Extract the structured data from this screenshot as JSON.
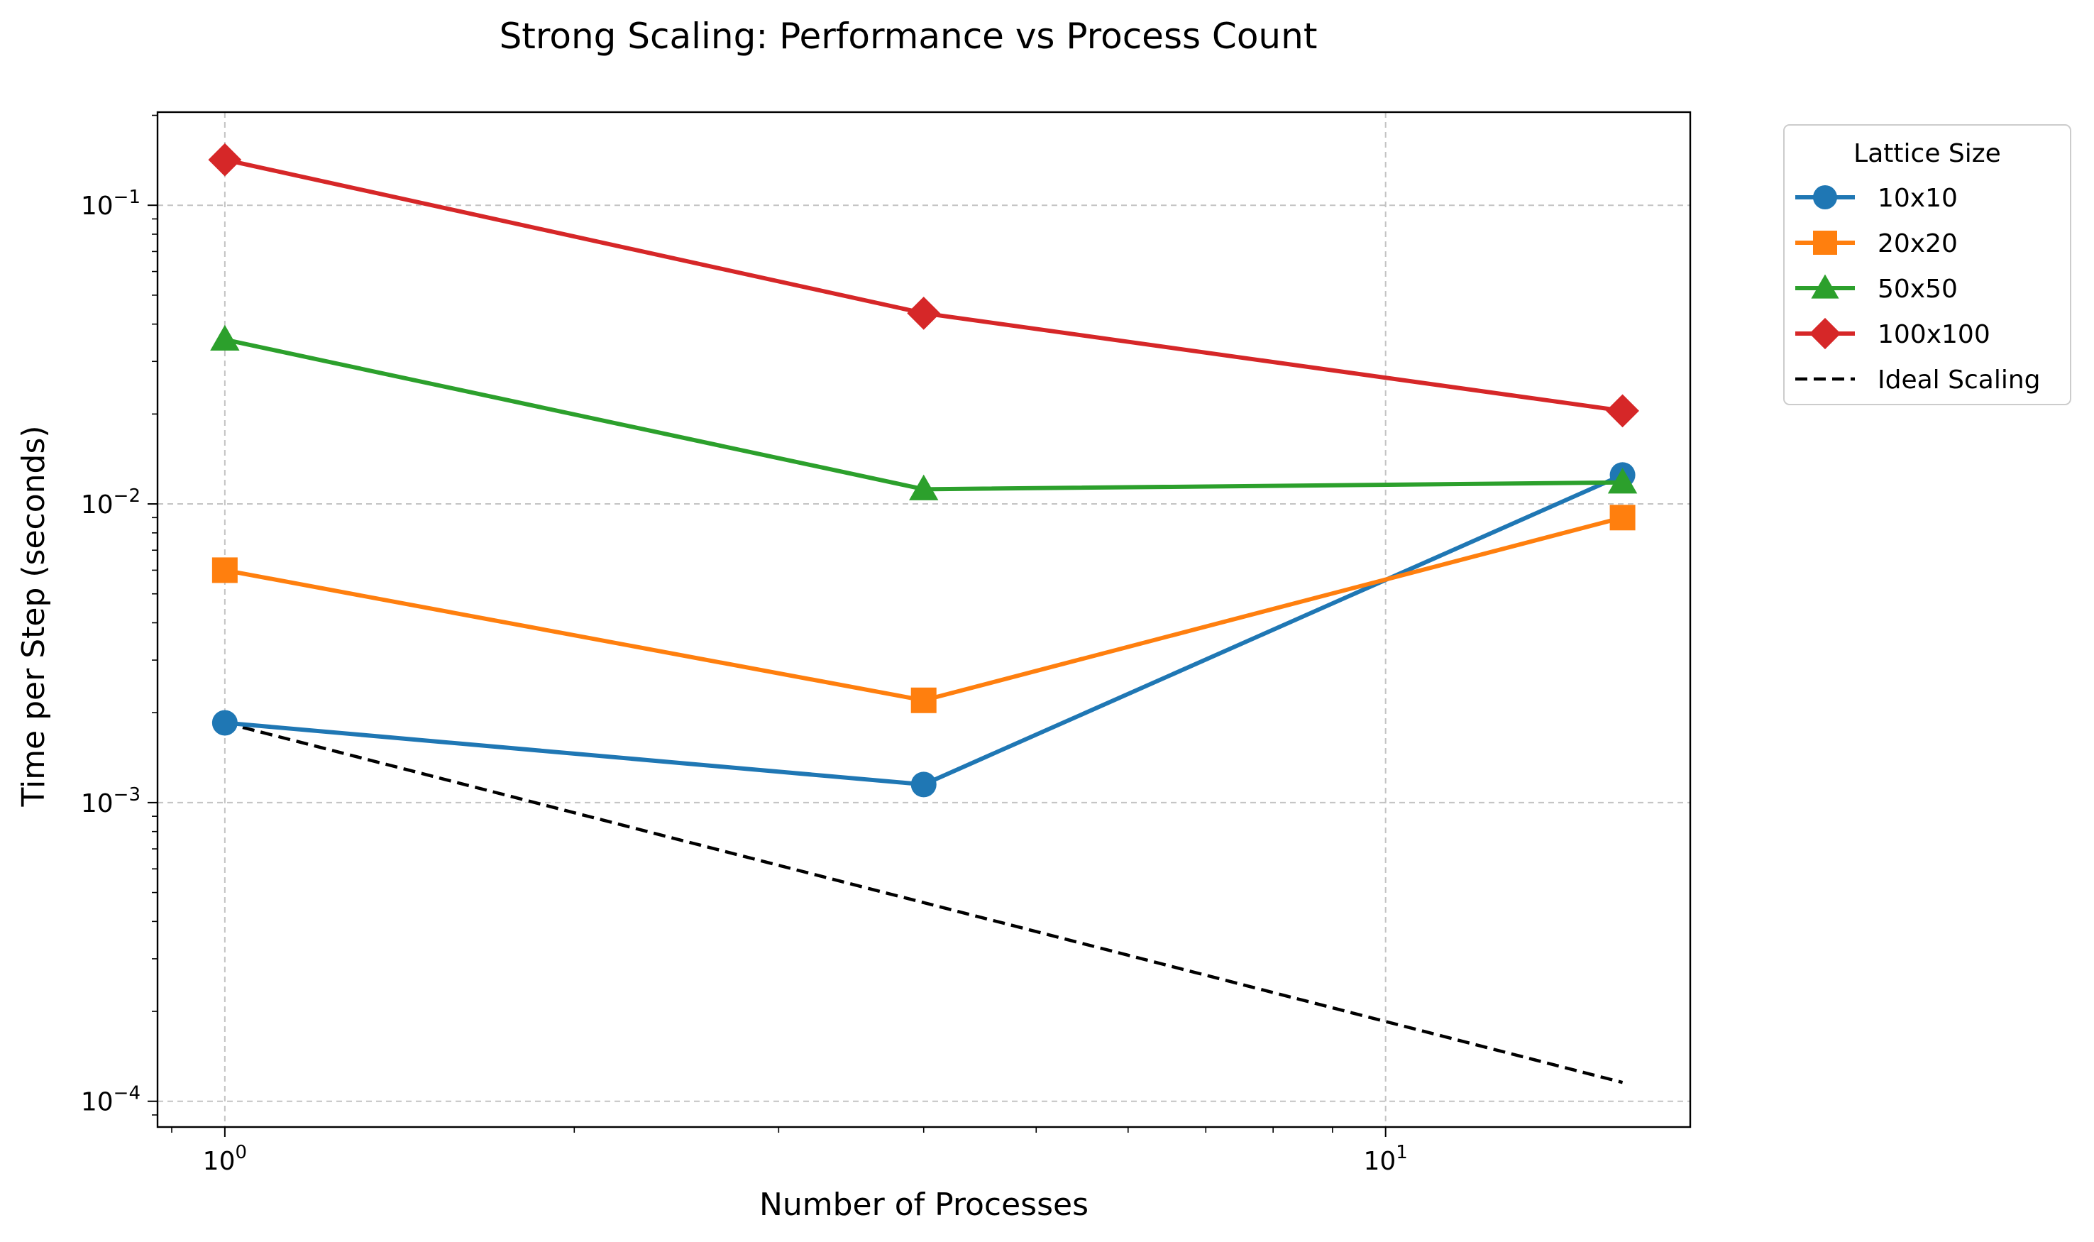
{
  "chart_data": {
    "type": "line",
    "title": "Strong Scaling: Performance vs Process Count",
    "xlabel": "Number of Processes",
    "ylabel": "Time per Step (seconds)",
    "xscale": "log",
    "yscale": "log",
    "xlim": [
      0.875,
      18.3
    ],
    "ylim": [
      8.2e-05,
      0.205
    ],
    "x_ticks": [
      {
        "value": 1,
        "base": "10",
        "exp": "0"
      },
      {
        "value": 10,
        "base": "10",
        "exp": "1"
      }
    ],
    "y_ticks": [
      {
        "value": 0.0001,
        "base": "10",
        "exp": "−4"
      },
      {
        "value": 0.001,
        "base": "10",
        "exp": "−3"
      },
      {
        "value": 0.01,
        "base": "10",
        "exp": "−2"
      },
      {
        "value": 0.1,
        "base": "10",
        "exp": "−1"
      }
    ],
    "grid": true,
    "legend": {
      "title": "Lattice Size",
      "placement": "outside-top-right"
    },
    "x": [
      1,
      4,
      16
    ],
    "series": [
      {
        "name": "10x10",
        "marker": "circle",
        "color": "#1f77b4",
        "values": [
          0.00185,
          0.00115,
          0.0125
        ]
      },
      {
        "name": "20x20",
        "marker": "square",
        "color": "#ff7f0e",
        "values": [
          0.006,
          0.0022,
          0.009
        ]
      },
      {
        "name": "50x50",
        "marker": "triangle",
        "color": "#2ca02c",
        "values": [
          0.0355,
          0.0112,
          0.0118
        ]
      },
      {
        "name": "100x100",
        "marker": "diamond",
        "color": "#d62728",
        "values": [
          0.142,
          0.0435,
          0.0205
        ]
      },
      {
        "name": "Ideal Scaling",
        "marker": "none",
        "color": "#000000",
        "dashed": true,
        "values": [
          0.00185,
          0.0004625,
          0.000115625
        ]
      }
    ]
  }
}
